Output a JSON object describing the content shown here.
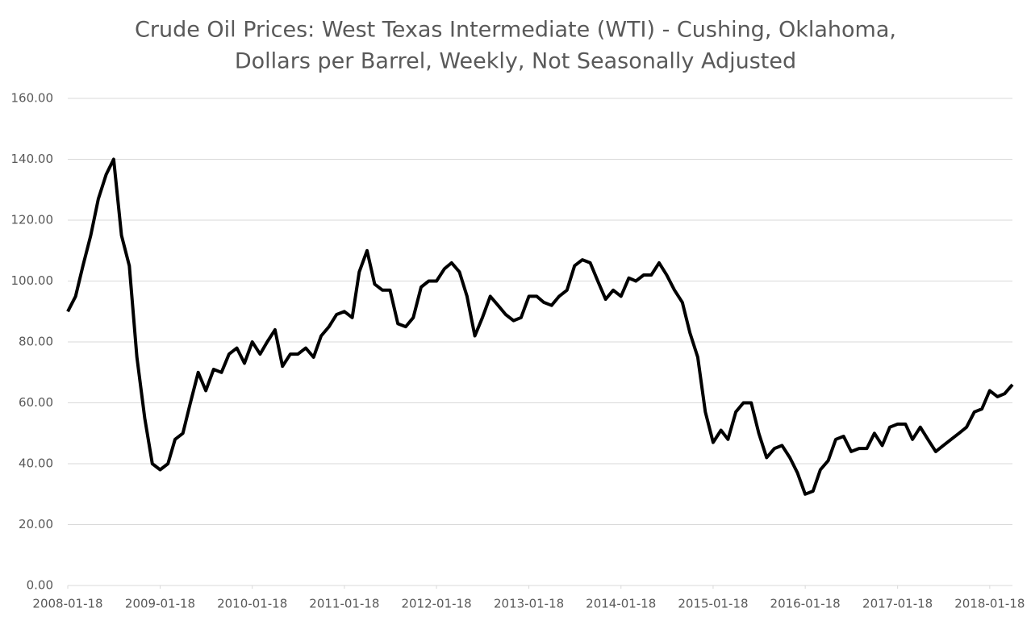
{
  "chart_data": {
    "type": "line",
    "title": [
      "Crude Oil Prices: West Texas Intermediate (WTI) - Cushing, Oklahoma,",
      "Dollars per Barrel, Weekly, Not Seasonally Adjusted"
    ],
    "color": "#000000",
    "grid": true,
    "x": [
      "2008-01-18",
      "2008-02-18",
      "2008-03-18",
      "2008-04-18",
      "2008-05-18",
      "2008-06-18",
      "2008-07-18",
      "2008-08-18",
      "2008-09-18",
      "2008-10-18",
      "2008-11-18",
      "2008-12-18",
      "2009-01-18",
      "2009-02-18",
      "2009-03-18",
      "2009-04-18",
      "2009-05-18",
      "2009-06-18",
      "2009-07-18",
      "2009-08-18",
      "2009-09-18",
      "2009-10-18",
      "2009-11-18",
      "2009-12-18",
      "2010-01-18",
      "2010-02-18",
      "2010-03-18",
      "2010-04-18",
      "2010-05-18",
      "2010-06-18",
      "2010-07-18",
      "2010-08-18",
      "2010-09-18",
      "2010-10-18",
      "2010-11-18",
      "2010-12-18",
      "2011-01-18",
      "2011-02-18",
      "2011-03-18",
      "2011-04-18",
      "2011-05-18",
      "2011-06-18",
      "2011-07-18",
      "2011-08-18",
      "2011-09-18",
      "2011-10-18",
      "2011-11-18",
      "2011-12-18",
      "2012-01-18",
      "2012-02-18",
      "2012-03-18",
      "2012-04-18",
      "2012-05-18",
      "2012-06-18",
      "2012-07-18",
      "2012-08-18",
      "2012-09-18",
      "2012-10-18",
      "2012-11-18",
      "2012-12-18",
      "2013-01-18",
      "2013-02-18",
      "2013-03-18",
      "2013-04-18",
      "2013-05-18",
      "2013-06-18",
      "2013-07-18",
      "2013-08-18",
      "2013-09-18",
      "2013-10-18",
      "2013-11-18",
      "2013-12-18",
      "2014-01-18",
      "2014-02-18",
      "2014-03-18",
      "2014-04-18",
      "2014-05-18",
      "2014-06-18",
      "2014-07-18",
      "2014-08-18",
      "2014-09-18",
      "2014-10-18",
      "2014-11-18",
      "2014-12-18",
      "2015-01-18",
      "2015-02-18",
      "2015-03-18",
      "2015-04-18",
      "2015-05-18",
      "2015-06-18",
      "2015-07-18",
      "2015-08-18",
      "2015-09-18",
      "2015-10-18",
      "2015-11-18",
      "2015-12-18",
      "2016-01-18",
      "2016-02-18",
      "2016-03-18",
      "2016-04-18",
      "2016-05-18",
      "2016-06-18",
      "2016-07-18",
      "2016-08-18",
      "2016-09-18",
      "2016-10-18",
      "2016-11-18",
      "2016-12-18",
      "2017-01-18",
      "2017-02-18",
      "2017-03-18",
      "2017-04-18",
      "2017-05-18",
      "2017-06-18",
      "2017-07-18",
      "2017-08-18",
      "2017-09-18",
      "2017-10-18",
      "2017-11-18",
      "2017-12-18",
      "2018-01-18",
      "2018-02-18",
      "2018-03-18",
      "2018-04-18"
    ],
    "values": [
      90,
      95,
      105,
      115,
      127,
      135,
      140,
      115,
      105,
      75,
      55,
      40,
      38,
      40,
      48,
      50,
      60,
      70,
      64,
      71,
      70,
      76,
      78,
      73,
      80,
      76,
      80,
      84,
      72,
      76,
      76,
      78,
      75,
      82,
      85,
      89,
      90,
      88,
      103,
      110,
      99,
      97,
      97,
      86,
      85,
      88,
      98,
      100,
      100,
      104,
      106,
      103,
      95,
      82,
      88,
      95,
      92,
      89,
      87,
      88,
      95,
      95,
      93,
      92,
      95,
      97,
      105,
      107,
      106,
      100,
      94,
      97,
      95,
      101,
      100,
      102,
      102,
      106,
      102,
      97,
      93,
      83,
      75,
      57,
      47,
      51,
      48,
      57,
      60,
      60,
      50,
      42,
      45,
      46,
      42,
      37,
      30,
      31,
      38,
      41,
      48,
      49,
      44,
      45,
      45,
      50,
      46,
      52,
      53,
      53,
      48,
      52,
      48,
      44,
      46,
      48,
      50,
      52,
      57,
      58,
      64,
      62,
      63,
      66
    ],
    "xlim": [
      "2008-01-18",
      "2018-04-18"
    ],
    "xticks": [
      "2008-01-18",
      "2009-01-18",
      "2010-01-18",
      "2011-01-18",
      "2012-01-18",
      "2013-01-18",
      "2014-01-18",
      "2015-01-18",
      "2016-01-18",
      "2017-01-18",
      "2018-01-18"
    ],
    "ylim": [
      0,
      160
    ],
    "yticks": [
      {
        "value": 0,
        "label": "0.00"
      },
      {
        "value": 20,
        "label": "20.00"
      },
      {
        "value": 40,
        "label": "40.00"
      },
      {
        "value": 60,
        "label": "60.00"
      },
      {
        "value": 80,
        "label": "80.00"
      },
      {
        "value": 100,
        "label": "100.00"
      },
      {
        "value": 120,
        "label": "120.00"
      },
      {
        "value": 140,
        "label": "140.00"
      },
      {
        "value": 160,
        "label": "160.00"
      }
    ]
  }
}
